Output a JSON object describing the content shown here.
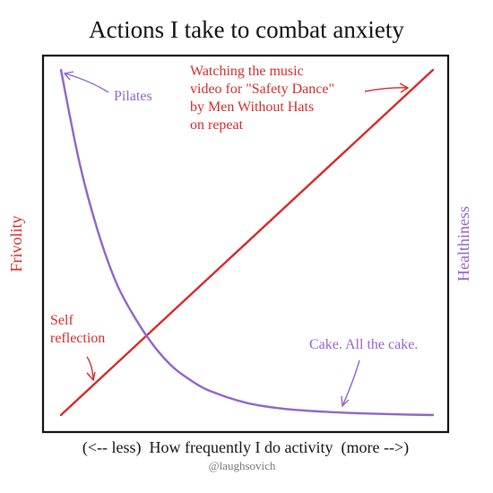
{
  "chart_data": {
    "type": "line",
    "title": "Actions I take to combat anxiety",
    "xlabel": "(<-- less)  How frequently I do activity  (more -->)",
    "ylabel_left": "Frivolity",
    "ylabel_right": "Healthiness",
    "credit": "@laughsovich",
    "grid": false,
    "series": [
      {
        "name": "Frivolity",
        "color": "#d42a2a",
        "x": [
          0,
          10
        ],
        "y": [
          0,
          10
        ]
      },
      {
        "name": "Healthiness",
        "color": "#9163c9",
        "x": [
          0,
          0.5,
          1,
          1.5,
          2,
          2.5,
          3,
          3.5,
          4,
          5,
          6,
          7,
          8,
          9,
          10
        ],
        "y": [
          10,
          7.3,
          5.3,
          3.8,
          2.8,
          2.0,
          1.4,
          1.0,
          0.7,
          0.35,
          0.18,
          0.1,
          0.05,
          0.02,
          0
        ]
      }
    ],
    "annotations": [
      {
        "lines": [
          "Pilates"
        ],
        "color": "#9163c9",
        "x": 0.1,
        "y": 10
      },
      {
        "lines": [
          "Watching the music",
          "video for \"Safety Dance\"",
          "by Men Without Hats",
          "on repeat"
        ],
        "color": "#d42a2a",
        "x": 9.5,
        "y": 9.5
      },
      {
        "lines": [
          "Self",
          "reflection"
        ],
        "color": "#d42a2a",
        "x": 0.8,
        "y": 0.8
      },
      {
        "lines": [
          "Cake. All the cake."
        ],
        "color": "#9163c9",
        "x": 7.8,
        "y": 0.1
      }
    ]
  }
}
